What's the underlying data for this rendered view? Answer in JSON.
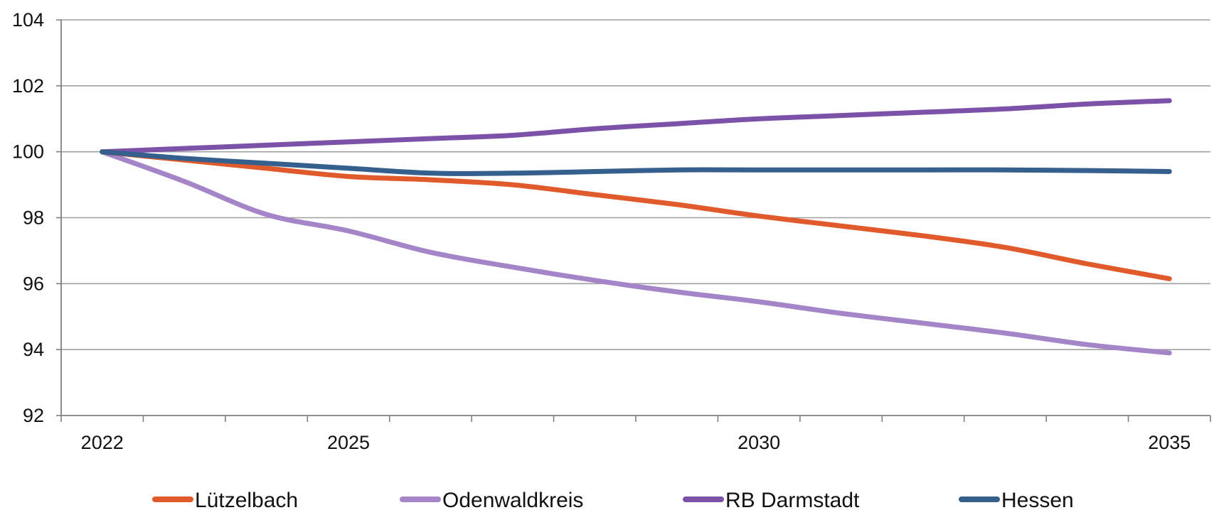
{
  "chart_data": {
    "type": "line",
    "title": "",
    "xlabel": "",
    "ylabel": "",
    "x": [
      2022,
      2023,
      2024,
      2025,
      2026,
      2027,
      2028,
      2029,
      2030,
      2031,
      2032,
      2033,
      2034,
      2035
    ],
    "x_ticks": [
      2022,
      2025,
      2030,
      2035
    ],
    "xlim": [
      2021.5,
      2035.5
    ],
    "ylim": [
      92,
      104
    ],
    "y_ticks": [
      92,
      94,
      96,
      98,
      100,
      102,
      104
    ],
    "grid": true,
    "legend_position": "bottom",
    "series": [
      {
        "name": "Lützelbach",
        "color": "#e05a2b",
        "values": [
          100,
          99.75,
          99.5,
          99.25,
          99.15,
          99.0,
          98.7,
          98.4,
          98.05,
          97.75,
          97.45,
          97.1,
          96.6,
          96.15
        ]
      },
      {
        "name": "Odenwaldkreis",
        "color": "#a385c8",
        "values": [
          100,
          99.1,
          98.1,
          97.6,
          96.95,
          96.5,
          96.1,
          95.75,
          95.45,
          95.1,
          94.8,
          94.5,
          94.15,
          93.9
        ]
      },
      {
        "name": "RB Darmstadt",
        "color": "#7b52a8",
        "values": [
          100,
          100.1,
          100.2,
          100.3,
          100.4,
          100.5,
          100.7,
          100.85,
          101.0,
          101.1,
          101.2,
          101.3,
          101.45,
          101.55
        ]
      },
      {
        "name": "Hessen",
        "color": "#355f8c",
        "values": [
          100,
          99.8,
          99.65,
          99.5,
          99.35,
          99.35,
          99.4,
          99.45,
          99.45,
          99.45,
          99.45,
          99.45,
          99.43,
          99.4
        ]
      }
    ]
  }
}
